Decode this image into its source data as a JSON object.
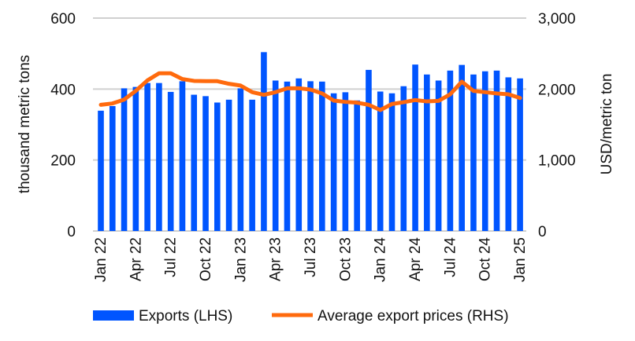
{
  "chart_data": {
    "type": "bar+line",
    "title": "",
    "ylabel": "thousand metric tons",
    "y2label": "USD/metric ton",
    "ylim": [
      0,
      600
    ],
    "y2lim": [
      0,
      3000
    ],
    "yticks": [
      "0",
      "200",
      "400",
      "600"
    ],
    "y2ticks": [
      "0",
      "1,000",
      "2,000",
      "3,000"
    ],
    "grid": true,
    "xtick_labels": [
      "Jan 22",
      "Apr 22",
      "Jul 22",
      "Oct 22",
      "Jan 23",
      "Apr 23",
      "Jul 23",
      "Oct 23",
      "Jan 24",
      "Apr 24",
      "Jul 24",
      "Oct 24",
      "Jan 25"
    ],
    "categories": [
      "Jan 22",
      "Feb 22",
      "Mar 22",
      "Apr 22",
      "May 22",
      "Jun 22",
      "Jul 22",
      "Aug 22",
      "Sep 22",
      "Oct 22",
      "Nov 22",
      "Dec 22",
      "Jan 23",
      "Feb 23",
      "Mar 23",
      "Apr 23",
      "May 23",
      "Jun 23",
      "Jul 23",
      "Aug 23",
      "Sep 23",
      "Oct 23",
      "Nov 23",
      "Dec 23",
      "Jan 24",
      "Feb 24",
      "Mar 24",
      "Apr 24",
      "May 24",
      "Jun 24",
      "Jul 24",
      "Aug 24",
      "Sep 24",
      "Oct 24",
      "Nov 24",
      "Dec 24",
      "Jan 25"
    ],
    "series": [
      {
        "name": "Exports (LHS)",
        "type": "bar",
        "axis": "left",
        "color": "#0055FF",
        "values": [
          339,
          352,
          402,
          406,
          417,
          417,
          392,
          422,
          384,
          380,
          362,
          370,
          402,
          370,
          504,
          424,
          421,
          430,
          422,
          421,
          388,
          391,
          368,
          454,
          393,
          388,
          408,
          469,
          441,
          424,
          452,
          468,
          441,
          450,
          452,
          433,
          430
        ]
      },
      {
        "name": "Average export prices (RHS)",
        "type": "line",
        "axis": "right",
        "color": "#FF6A0D",
        "values": [
          1778,
          1797,
          1852,
          1975,
          2122,
          2222,
          2222,
          2141,
          2115,
          2111,
          2111,
          2074,
          2049,
          1956,
          1919,
          1956,
          2011,
          2011,
          1993,
          1938,
          1838,
          1819,
          1808,
          1778,
          1705,
          1789,
          1815,
          1845,
          1826,
          1833,
          1926,
          2104,
          1974,
          1956,
          1938,
          1926,
          1874
        ]
      }
    ],
    "legend": "bottom"
  }
}
